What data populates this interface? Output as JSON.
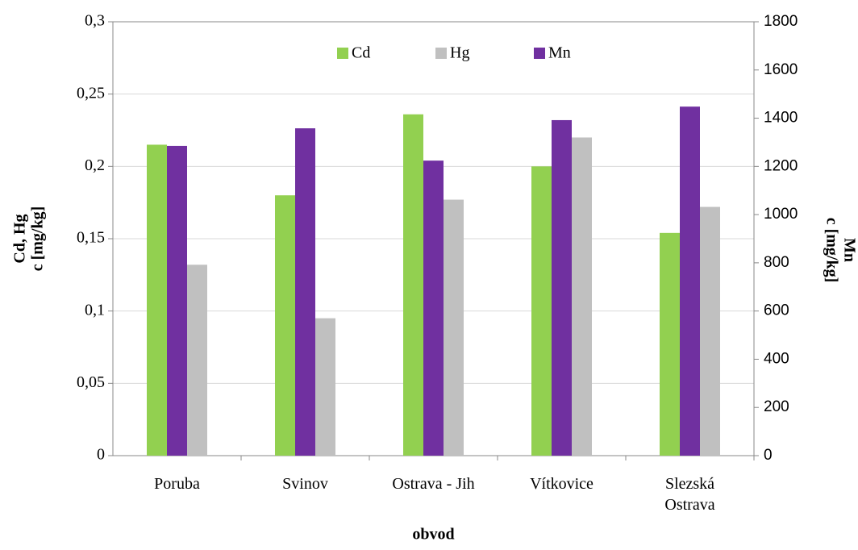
{
  "chart_data": {
    "type": "bar",
    "x_label": "obvod",
    "y_label": [
      "Cd, Hg",
      "c [mg/kg]"
    ],
    "y2_label": [
      "c [mg/kg]",
      "Mn"
    ],
    "categories": [
      "Poruba",
      "Svinov",
      "Ostrava - Jih",
      "Vítkovice",
      "Slezská Ostrava"
    ],
    "series": [
      {
        "name": "Cd",
        "color": "#92d050",
        "values": [
          0.215,
          0.18,
          0.236,
          0.2,
          0.154
        ]
      },
      {
        "name": "Hg",
        "color": "#c0c0c0",
        "values": [
          0.132,
          0.095,
          0.177,
          0.22,
          0.172
        ]
      },
      {
        "name": "Mn",
        "color": "#7030a0",
        "axis": "y2",
        "values": [
          1285,
          1358,
          1224,
          1392,
          1448
        ]
      }
    ],
    "bar_order": [
      "Cd",
      "Mn",
      "Hg"
    ],
    "ylim": [
      0,
      0.3
    ],
    "yticks": [
      0,
      {
        "value": 0.05,
        "label": "0,05"
      },
      {
        "value": 0.1,
        "label": "0,1"
      },
      {
        "value": 0.15,
        "label": "0,15"
      },
      {
        "value": 0.2,
        "label": "0,2"
      },
      {
        "value": 0.25,
        "label": "0,25"
      },
      {
        "value": 0.3,
        "label": "0,3"
      }
    ],
    "y2lim": [
      0,
      1800
    ],
    "y2ticks": [
      0,
      200,
      400,
      600,
      800,
      1000,
      1200,
      1400,
      1600,
      1800
    ],
    "grid": true,
    "legend": "top"
  }
}
